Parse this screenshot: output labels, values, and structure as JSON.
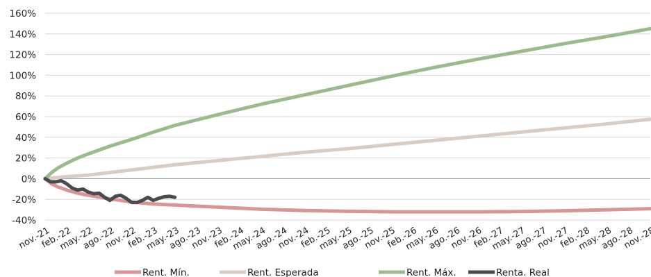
{
  "chart_data": {
    "type": "line",
    "title": "",
    "xlabel": "",
    "ylabel": "",
    "ylim": [
      -40,
      160
    ],
    "ystep": 20,
    "y_tick_suffix": "%",
    "x_categories": [
      "nov.-21",
      "feb.-22",
      "may.-22",
      "ago.-22",
      "nov.-22",
      "feb.-23",
      "may.-23",
      "ago.-23",
      "nov.-23",
      "feb.-24",
      "may.-24",
      "ago.-24",
      "nov.-24",
      "feb.-25",
      "may.-25",
      "ago.-25",
      "nov.-25",
      "feb.-26",
      "may.-26",
      "ago.-26",
      "nov.-26",
      "feb.-27",
      "may.-27",
      "ago.-27",
      "nov.-27",
      "feb.-28",
      "may.-28",
      "ago.-28",
      "nov.-28"
    ],
    "grid": true,
    "legend_position": "bottom",
    "series": [
      {
        "name": "Rent. Mín.",
        "color": "#d99594",
        "x": [
          0,
          0.3,
          0.6,
          1,
          1.5,
          2,
          3,
          4,
          5,
          6,
          7,
          8,
          10,
          12,
          14,
          16,
          18,
          20,
          22,
          24,
          26,
          28
        ],
        "y": [
          0,
          -5,
          -8,
          -11,
          -14,
          -16,
          -19.5,
          -22.5,
          -24.5,
          -25.5,
          -26.5,
          -27.5,
          -29.5,
          -30.8,
          -31.5,
          -32,
          -32,
          -32,
          -31.8,
          -31,
          -30,
          -29
        ]
      },
      {
        "name": "Rent. Esperada",
        "color": "#d9ccc3",
        "x": [
          0,
          1,
          2,
          3,
          4,
          5,
          6,
          8,
          10,
          12,
          14,
          16,
          18,
          20,
          22,
          24,
          26,
          28
        ],
        "y": [
          0,
          2,
          3.5,
          6,
          8.5,
          11,
          13.5,
          17.5,
          21.5,
          25.5,
          29,
          33,
          37,
          41,
          45,
          49,
          53,
          57.5
        ]
      },
      {
        "name": "Rent. Máx.",
        "color": "#9bbb8f",
        "x": [
          0,
          0.3,
          0.6,
          1,
          1.5,
          2,
          3,
          4,
          5,
          6,
          8,
          10,
          12,
          14,
          16,
          18,
          20,
          22,
          24,
          26,
          28
        ],
        "y": [
          0,
          6,
          10.5,
          15,
          20,
          24,
          31.5,
          38,
          45,
          51.5,
          62,
          72,
          81,
          90,
          99,
          107.5,
          115.5,
          123,
          130.5,
          137.5,
          145
        ]
      },
      {
        "name": "Renta. Real",
        "color": "#4a4a4f",
        "x": [
          0,
          0.25,
          0.5,
          0.75,
          1,
          1.25,
          1.5,
          1.75,
          2,
          2.25,
          2.5,
          2.75,
          3,
          3.25,
          3.5,
          3.75,
          4,
          4.25,
          4.5,
          4.75,
          5,
          5.25,
          5.5,
          5.75,
          6
        ],
        "y": [
          0,
          -3,
          -3,
          -2,
          -5,
          -9,
          -11,
          -10,
          -13,
          -14.5,
          -14,
          -18,
          -21,
          -17,
          -16,
          -19,
          -23,
          -23,
          -21,
          -18,
          -21,
          -19,
          -17.5,
          -17,
          -18
        ]
      }
    ]
  }
}
